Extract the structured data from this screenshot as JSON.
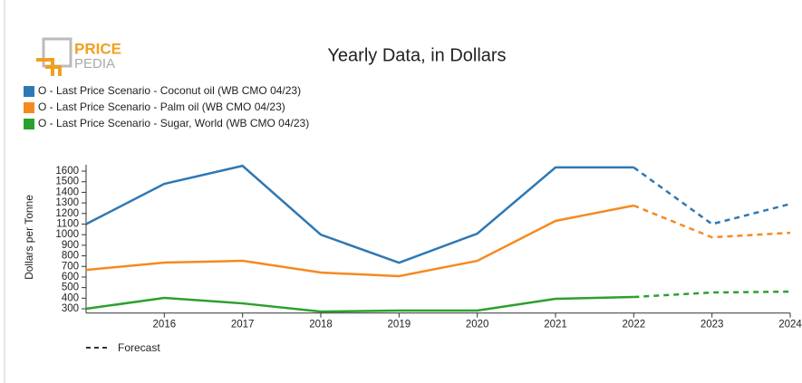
{
  "logo": {
    "top": "PRICE",
    "bottom": "PEDIA"
  },
  "chart_data": {
    "type": "line",
    "title": "Yearly Data, in Dollars",
    "y_label": "Dollars per Tonne",
    "x": [
      2015,
      2016,
      2017,
      2018,
      2019,
      2020,
      2021,
      2022,
      2023,
      2024
    ],
    "xlim": [
      2015,
      2024
    ],
    "xticks": [
      2016,
      2017,
      2018,
      2019,
      2020,
      2021,
      2022,
      2023,
      2024
    ],
    "ylim": [
      260,
      1660
    ],
    "yticks": [
      300,
      400,
      500,
      600,
      700,
      800,
      900,
      1000,
      1100,
      1200,
      1300,
      1400,
      1500,
      1600
    ],
    "forecast_from": 2022,
    "forecast_label": "Forecast",
    "series": [
      {
        "name": "O - Last Price Scenario - Coconut oil (WB CMO 04/23)",
        "color": "#2e78b4",
        "values": [
          1100,
          1480,
          1650,
          1000,
          735,
          1010,
          1635,
          1635,
          1100,
          1290
        ]
      },
      {
        "name": "O - Last Price Scenario - Palm oil (WB CMO 04/23)",
        "color": "#f58a1f",
        "values": [
          667,
          736,
          753,
          642,
          608,
          753,
          1130,
          1275,
          975,
          1018
        ]
      },
      {
        "name": "O - Last Price Scenario - Sugar, World (WB CMO 04/23)",
        "color": "#2ca02c",
        "values": [
          300,
          403,
          351,
          274,
          283,
          283,
          394,
          411,
          454,
          462
        ]
      }
    ]
  }
}
